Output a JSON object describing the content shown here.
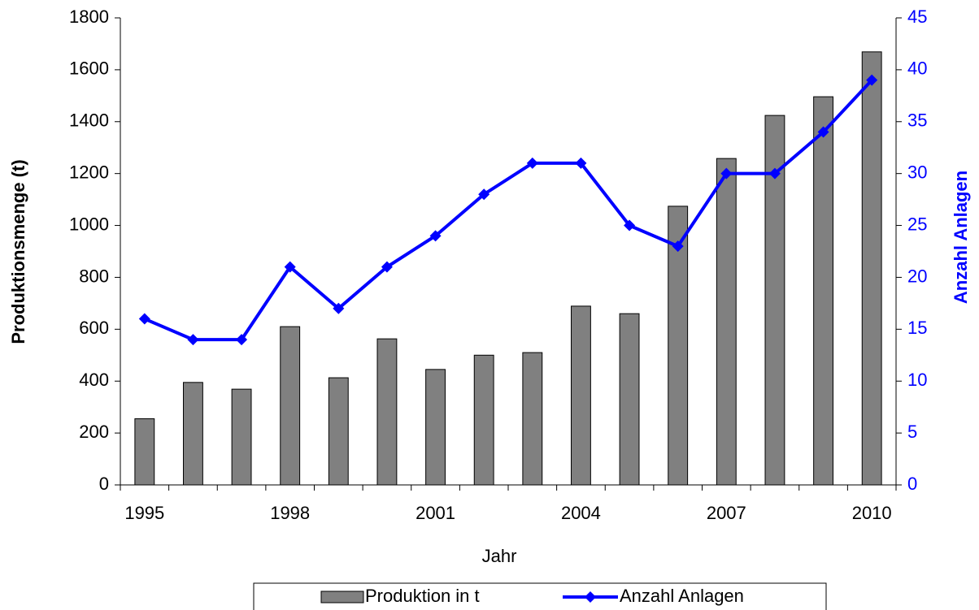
{
  "chart_data": {
    "type": "bar-line",
    "x_label": "Jahr",
    "y_label": "Produktionsmenge (t)",
    "y2_label": "Anzahl Anlagen",
    "categories": [
      "1995",
      null,
      null,
      "1998",
      null,
      null,
      "2001",
      null,
      null,
      "2004",
      null,
      null,
      "2007",
      null,
      null,
      "2010"
    ],
    "series": [
      {
        "name": "Produktion in t",
        "type": "bar",
        "color": "#808080",
        "values": [
          255,
          395,
          369,
          610,
          413,
          563,
          445,
          500,
          510,
          689,
          660,
          1074,
          1258,
          1424,
          1496,
          1669
        ]
      },
      {
        "name": "Anzahl Anlagen",
        "type": "line",
        "axis": "y2",
        "color": "#0000ff",
        "values": [
          16,
          14,
          14,
          21,
          17,
          21,
          24,
          28,
          31,
          31,
          25,
          23,
          30,
          30,
          34,
          39
        ]
      }
    ],
    "ylim": [
      0,
      1800
    ],
    "yticks": [
      0,
      200,
      400,
      600,
      800,
      1000,
      1200,
      1400,
      1600,
      1800
    ],
    "y2lim": [
      0,
      45
    ],
    "y2ticks": [
      0,
      5,
      10,
      15,
      20,
      25,
      30,
      35,
      40,
      45
    ],
    "legend": "bottom"
  }
}
